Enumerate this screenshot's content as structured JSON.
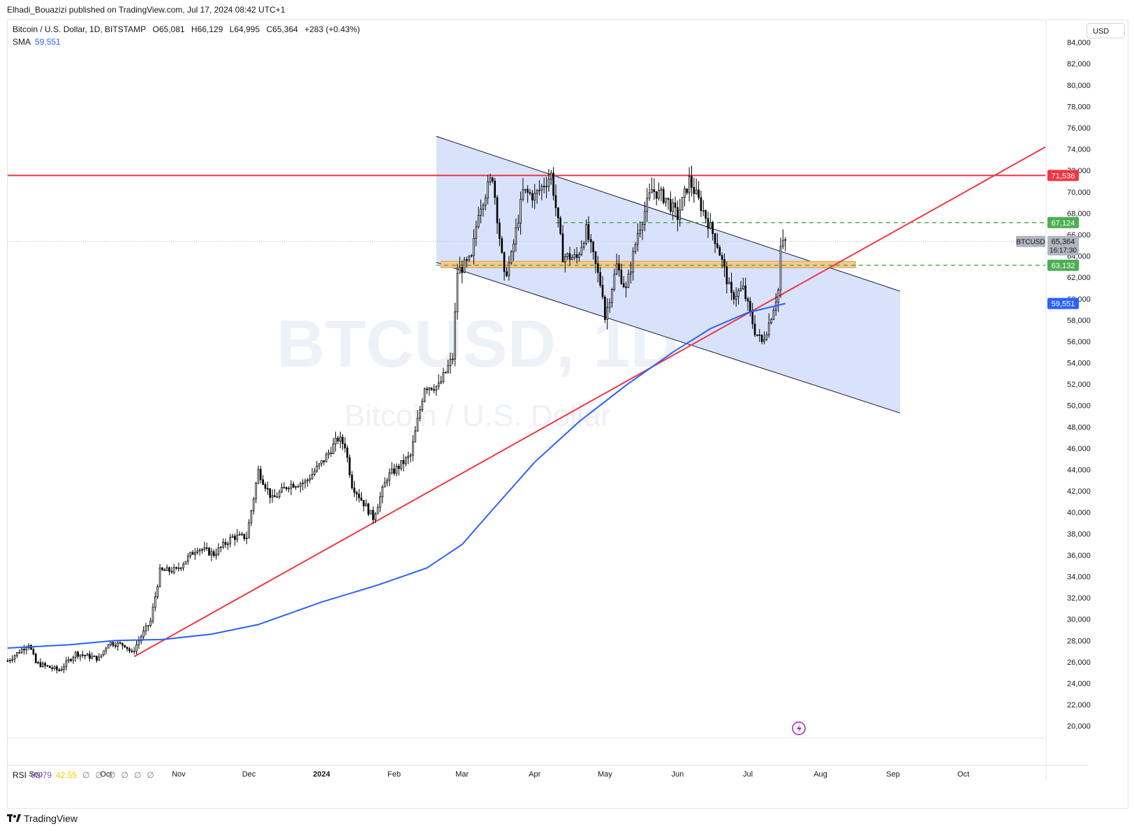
{
  "header": {
    "publish_line": "Elhadi_Bouazizi published on TradingView.com, Jul 17, 2024 08:42 UTC+1"
  },
  "legend": {
    "symbol": "Bitcoin / U.S. Dollar, 1D, BITSTAMP",
    "open": "O65,081",
    "high": "H66,129",
    "low": "L64,995",
    "close": "C65,364",
    "change": "+283 (+0.43%)",
    "sma_label": "SMA",
    "sma_value": "59,551"
  },
  "watermark": {
    "symbol": "BTCUSD, 1D",
    "name": "Bitcoin / U.S. Dollar"
  },
  "currency_button": "USD",
  "rsi": {
    "label": "RSI",
    "value1": "62.79",
    "value2": "42.55",
    "na_glyph": "∅"
  },
  "footer": {
    "brand": "TradingView"
  },
  "colors": {
    "candle": "#000000",
    "sma": "#2962ff",
    "resistance": "#f23645",
    "green": "#4caf50",
    "channel_fill": "#d6e0fb",
    "zone": "#f5c88c"
  },
  "chart_data": {
    "type": "candlestick",
    "ylim": [
      19000,
      86000
    ],
    "y_ticks": [
      20000,
      22000,
      24000,
      26000,
      28000,
      30000,
      32000,
      34000,
      36000,
      38000,
      40000,
      42000,
      44000,
      46000,
      48000,
      50000,
      52000,
      54000,
      56000,
      58000,
      60000,
      62000,
      64000,
      66000,
      68000,
      70000,
      72000,
      74000,
      76000,
      78000,
      80000,
      82000,
      84000
    ],
    "x_labels": [
      "Sep",
      "Oct",
      "Nov",
      "Dec",
      "2024",
      "Feb",
      "Mar",
      "Apr",
      "May",
      "Jun",
      "Jul",
      "Aug",
      "Sep",
      "Oct"
    ],
    "x_label_dates": [
      "2023-09-01",
      "2023-10-01",
      "2023-11-01",
      "2023-12-01",
      "2024-01-01",
      "2024-02-01",
      "2024-03-01",
      "2024-04-01",
      "2024-05-01",
      "2024-06-01",
      "2024-07-01",
      "2024-08-01",
      "2024-09-01",
      "2024-10-01"
    ],
    "xlim": [
      "2023-08-20",
      "2024-11-05"
    ],
    "price_points": [
      [
        "2023-08-20",
        26100
      ],
      [
        "2023-08-29",
        27700
      ],
      [
        "2023-09-01",
        25900
      ],
      [
        "2023-09-11",
        25200
      ],
      [
        "2023-09-18",
        26800
      ],
      [
        "2023-09-28",
        26300
      ],
      [
        "2023-10-02",
        27800
      ],
      [
        "2023-10-09",
        27600
      ],
      [
        "2023-10-12",
        26800
      ],
      [
        "2023-10-16",
        28400
      ],
      [
        "2023-10-20",
        29800
      ],
      [
        "2023-10-24",
        34500
      ],
      [
        "2023-10-31",
        34600
      ],
      [
        "2023-11-09",
        36700
      ],
      [
        "2023-11-16",
        36100
      ],
      [
        "2023-11-24",
        37700
      ],
      [
        "2023-11-30",
        37700
      ],
      [
        "2023-12-05",
        43900
      ],
      [
        "2023-12-11",
        41200
      ],
      [
        "2023-12-18",
        42600
      ],
      [
        "2023-12-25",
        42800
      ],
      [
        "2024-01-02",
        44900
      ],
      [
        "2024-01-08",
        46900
      ],
      [
        "2024-01-11",
        46300
      ],
      [
        "2024-01-14",
        42600
      ],
      [
        "2024-01-18",
        41200
      ],
      [
        "2024-01-23",
        39500
      ],
      [
        "2024-01-29",
        43300
      ],
      [
        "2024-02-08",
        45300
      ],
      [
        "2024-02-14",
        51800
      ],
      [
        "2024-02-20",
        51800
      ],
      [
        "2024-02-26",
        54500
      ],
      [
        "2024-02-28",
        62500
      ],
      [
        "2024-03-05",
        63700
      ],
      [
        "2024-03-08",
        68300
      ],
      [
        "2024-03-14",
        71500
      ],
      [
        "2024-03-19",
        62000
      ],
      [
        "2024-03-22",
        63900
      ],
      [
        "2024-03-27",
        70000
      ],
      [
        "2024-04-01",
        69600
      ],
      [
        "2024-04-08",
        71600
      ],
      [
        "2024-04-13",
        64000
      ],
      [
        "2024-04-19",
        63800
      ],
      [
        "2024-04-23",
        66400
      ],
      [
        "2024-04-30",
        60600
      ],
      [
        "2024-05-01",
        58200
      ],
      [
        "2024-05-06",
        63100
      ],
      [
        "2024-05-10",
        60800
      ],
      [
        "2024-05-15",
        66200
      ],
      [
        "2024-05-21",
        70200
      ],
      [
        "2024-05-27",
        69400
      ],
      [
        "2024-06-01",
        67700
      ],
      [
        "2024-06-06",
        71100
      ],
      [
        "2024-06-12",
        68200
      ],
      [
        "2024-06-18",
        65100
      ],
      [
        "2024-06-24",
        60200
      ],
      [
        "2024-06-29",
        60900
      ],
      [
        "2024-07-04",
        57000
      ],
      [
        "2024-07-07",
        55900
      ],
      [
        "2024-07-10",
        57700
      ],
      [
        "2024-07-14",
        60800
      ],
      [
        "2024-07-15",
        64800
      ],
      [
        "2024-07-17",
        65364
      ]
    ],
    "sma": {
      "name": "SMA",
      "points": [
        [
          "2023-08-20",
          27300
        ],
        [
          "2023-09-15",
          27600
        ],
        [
          "2023-10-05",
          28000
        ],
        [
          "2023-10-25",
          28100
        ],
        [
          "2023-11-15",
          28600
        ],
        [
          "2023-12-05",
          29500
        ],
        [
          "2024-01-01",
          31600
        ],
        [
          "2024-01-25",
          33200
        ],
        [
          "2024-02-15",
          34800
        ],
        [
          "2024-03-01",
          37000
        ],
        [
          "2024-03-15",
          40500
        ],
        [
          "2024-04-01",
          44700
        ],
        [
          "2024-04-20",
          48500
        ],
        [
          "2024-05-10",
          51900
        ],
        [
          "2024-05-30",
          55000
        ],
        [
          "2024-06-15",
          57200
        ],
        [
          "2024-07-01",
          58700
        ],
        [
          "2024-07-17",
          59551
        ]
      ]
    },
    "resistance_line": 71536,
    "upper_level": 67124,
    "lower_level": 63132,
    "last_price": 65364,
    "price_tags": {
      "resistance": "71,536",
      "upper": "67,124",
      "symbol": "BTCUSD",
      "last": "65,364",
      "countdown": "16:17:30",
      "lower": "63,132",
      "sma": "59,551"
    },
    "trendline": [
      [
        "2023-10-13",
        26500
      ],
      [
        "2024-11-05",
        74200
      ]
    ],
    "channel": {
      "upper": [
        [
          "2024-02-19",
          75200
        ],
        [
          "2024-09-04",
          60700
        ]
      ],
      "lower": [
        [
          "2024-02-19",
          63400
        ],
        [
          "2024-09-04",
          49300
        ]
      ]
    },
    "zone": {
      "from": "2024-02-21",
      "to": "2024-08-16",
      "low": 62900,
      "high": 63500
    }
  }
}
